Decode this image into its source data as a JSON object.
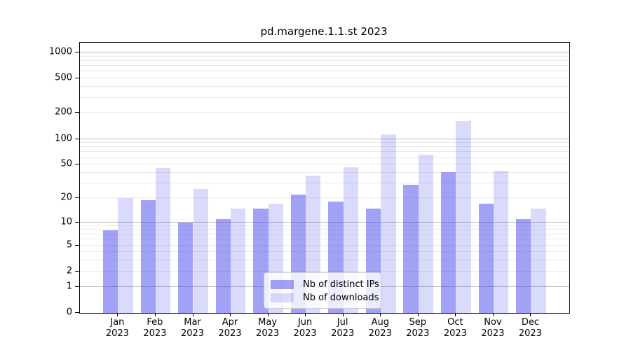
{
  "chart_data": {
    "type": "bar",
    "title": "pd.margene.1.1.st 2023",
    "categories": [
      "Jan 2023",
      "Feb 2023",
      "Mar 2023",
      "Apr 2023",
      "May 2023",
      "Jun 2023",
      "Jul 2023",
      "Aug 2023",
      "Sep 2023",
      "Oct 2023",
      "Nov 2023",
      "Dec 2023"
    ],
    "series": [
      {
        "name": "Nb of distinct IPs",
        "color": "#4444ee",
        "alpha": 0.5,
        "values": [
          8,
          19,
          10,
          11,
          15,
          22,
          18,
          15,
          29,
          41,
          17,
          11
        ]
      },
      {
        "name": "Nb of downloads",
        "color": "#4444ee",
        "alpha": 0.2,
        "values": [
          20,
          46,
          26,
          15,
          17,
          37,
          47,
          112,
          65,
          160,
          42,
          15
        ]
      }
    ],
    "xlabel": "",
    "ylabel": "",
    "yscale": "log(1+y)",
    "ylim": [
      0,
      1300
    ],
    "yticks": [
      0,
      1,
      2,
      5,
      10,
      20,
      50,
      100,
      200,
      500,
      1000
    ],
    "grid": "on",
    "legend_position": "lower center"
  }
}
